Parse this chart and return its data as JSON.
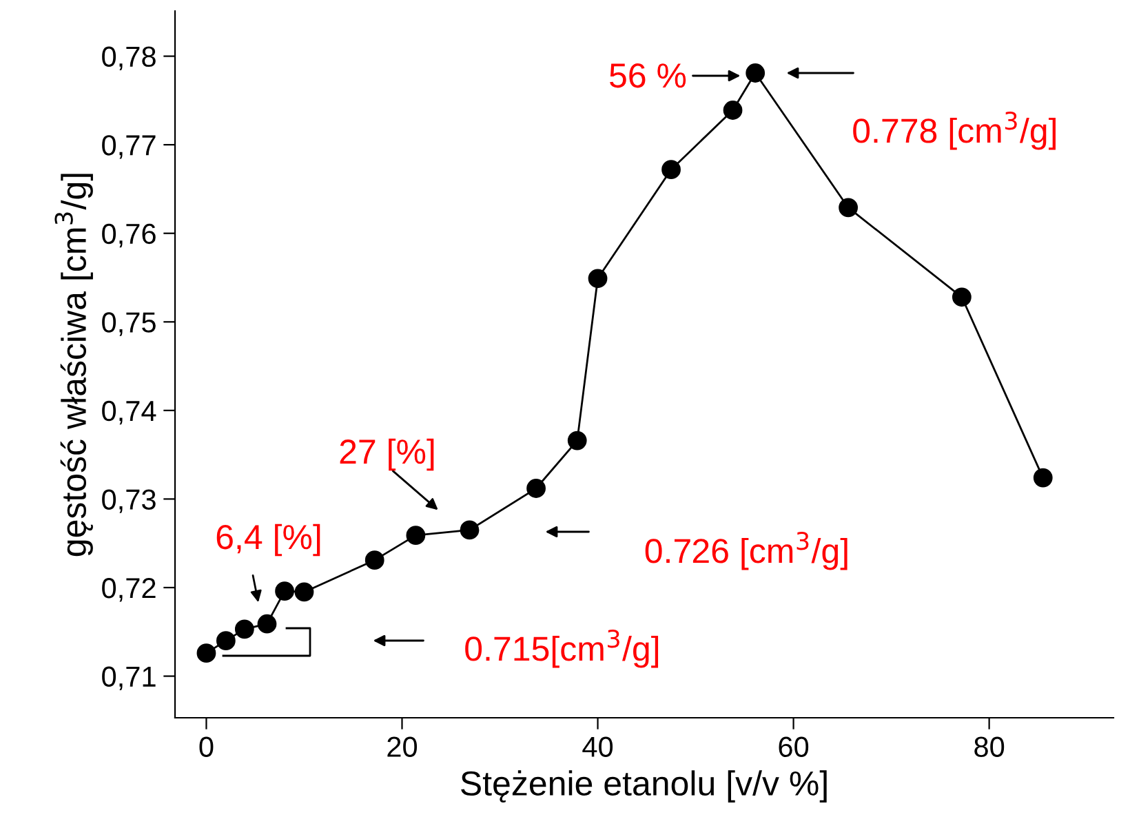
{
  "chart_data": {
    "type": "line",
    "xlabel": "Stężenie etanolu [v/v %]",
    "ylabel": "gęstość właściwa [cm$^{3}$/g]",
    "x": [
      0,
      2.0,
      3.9,
      6.2,
      8.0,
      10.0,
      17.2,
      21.4,
      26.9,
      33.7,
      37.9,
      40.0,
      47.5,
      53.8,
      56.1,
      65.6,
      77.2,
      85.5
    ],
    "series": [
      {
        "color": "#000000",
        "values": [
          0.7126,
          0.714,
          0.7153,
          0.7159,
          0.7196,
          0.7195,
          0.7231,
          0.7259,
          0.7265,
          0.7312,
          0.7366,
          0.7549,
          0.7672,
          0.7739,
          0.7781,
          0.7629,
          0.7528,
          0.7324
        ]
      }
    ],
    "marker": "circle",
    "line_style": "solid",
    "grid": false,
    "legend": false,
    "xlim": [
      -3.2,
      92.7
    ],
    "xticks": [
      0,
      20,
      40,
      60,
      80
    ],
    "ylim": [
      0.7053,
      0.7851
    ],
    "yticks": [
      {
        "value": 0.71,
        "label": "0,71"
      },
      {
        "value": 0.72,
        "label": "0,72"
      },
      {
        "value": 0.73,
        "label": "0,73"
      },
      {
        "value": 0.74,
        "label": "0,74"
      },
      {
        "value": 0.75,
        "label": "0,75"
      },
      {
        "value": 0.76,
        "label": "0,76"
      },
      {
        "value": 0.77,
        "label": "0,77"
      },
      {
        "value": 0.78,
        "label": "0,78"
      }
    ],
    "annotations": [
      "56 %",
      "0.778 [cm$^{3}$/g]",
      "27 [%]",
      "0.726 [cm$^{3}$/g]",
      "6,4 [%]",
      "0.715[cm$^{3}$/g]"
    ]
  }
}
